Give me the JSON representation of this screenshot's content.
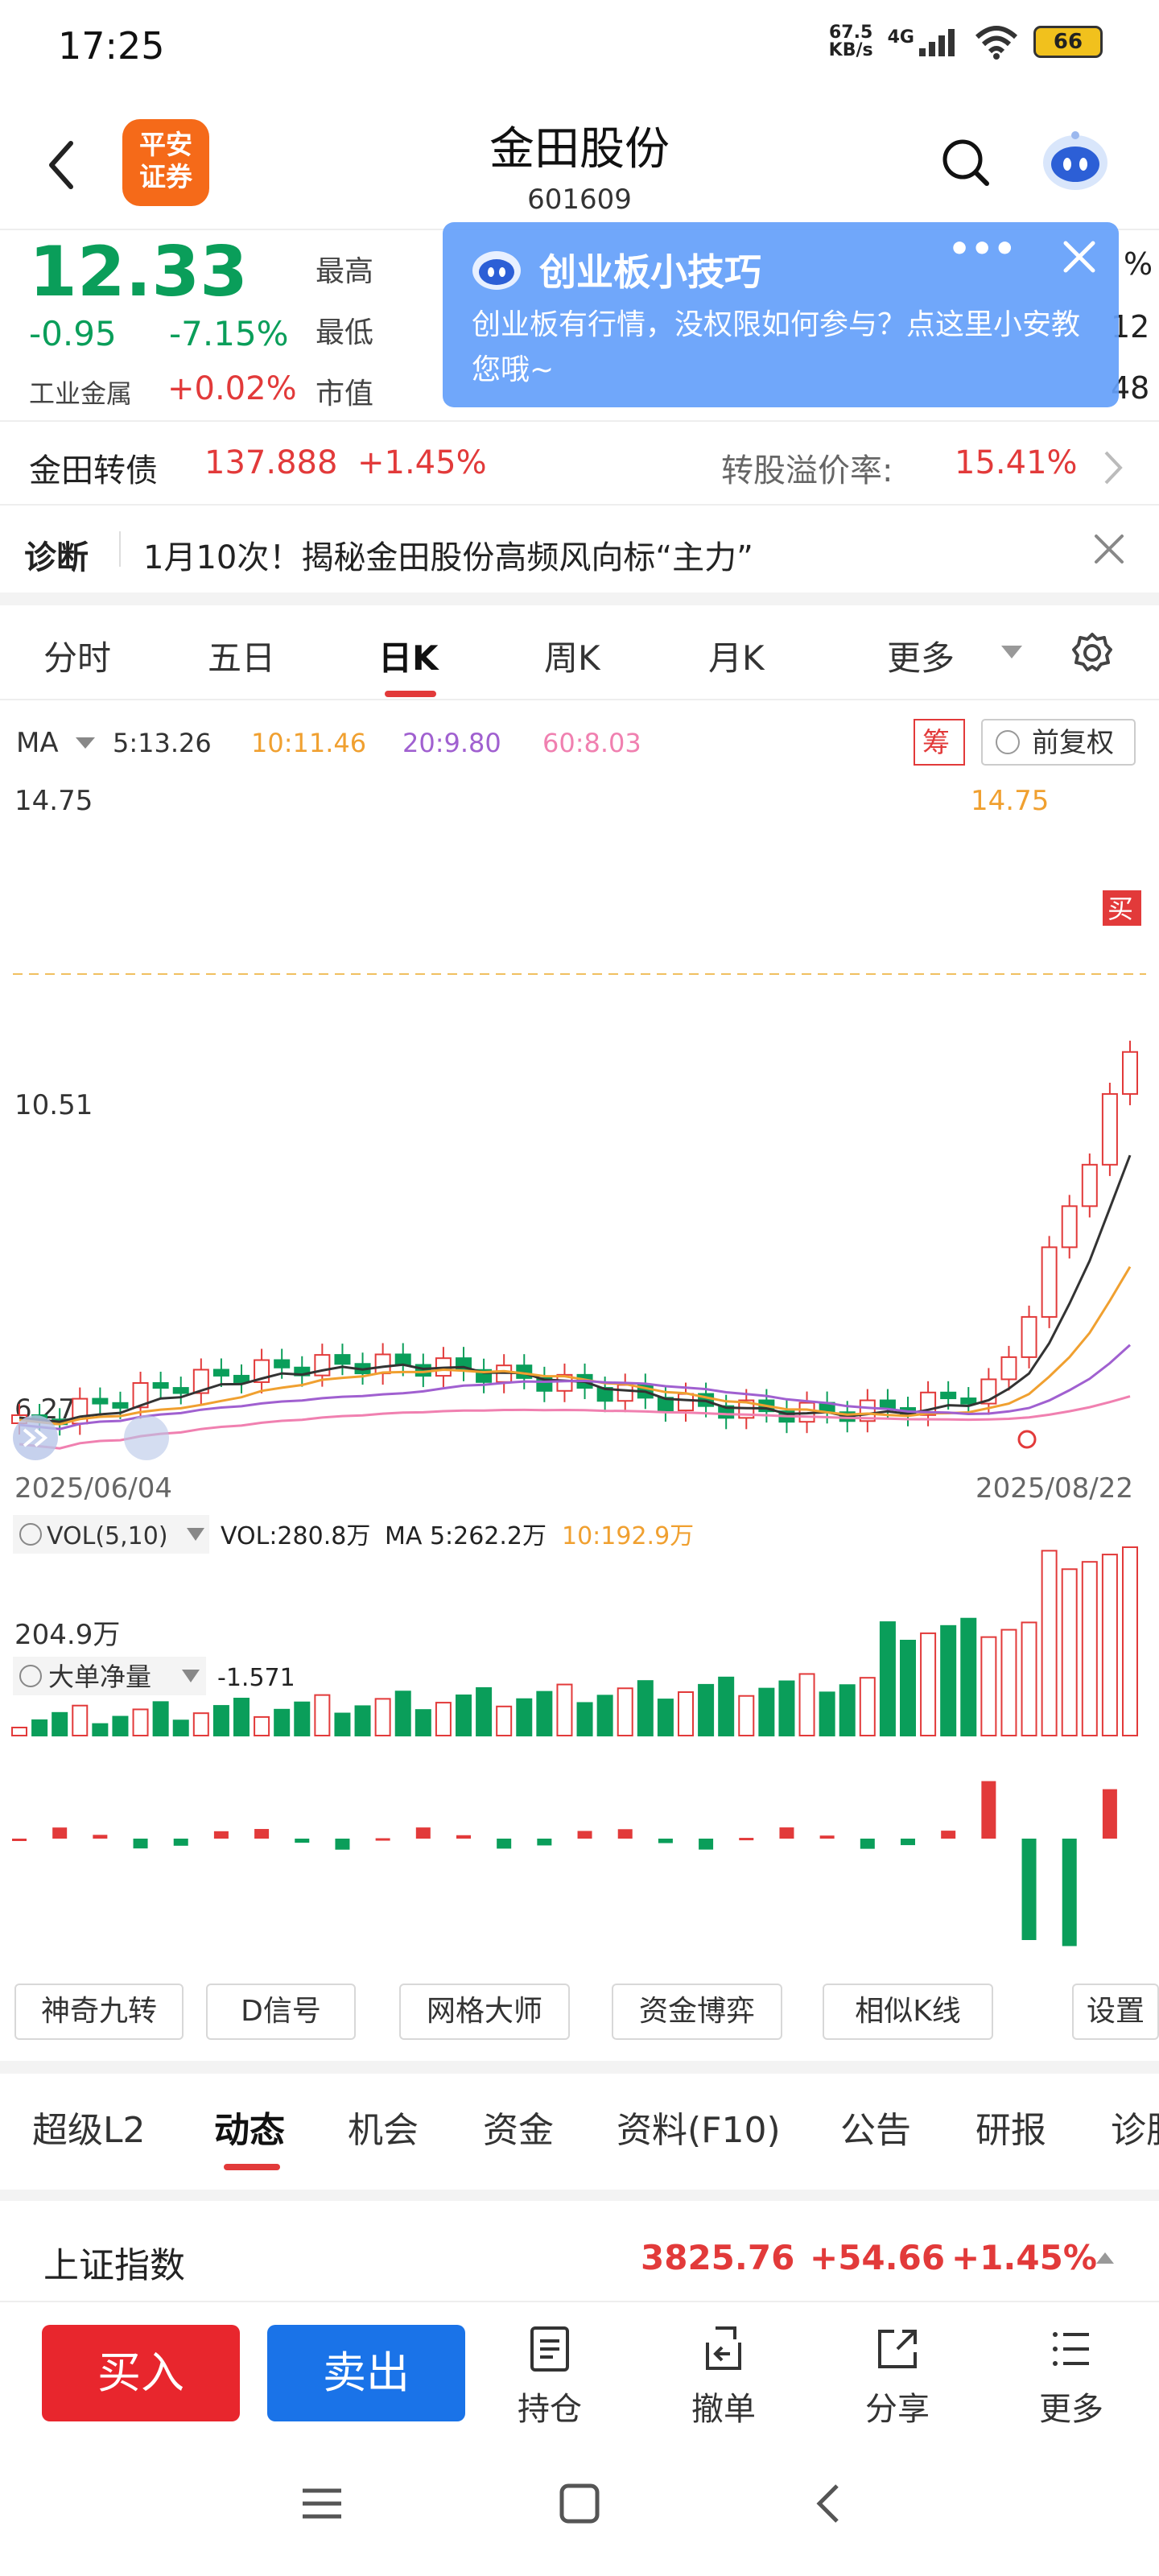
{
  "status_bar": {
    "time": "17:25",
    "net_speed": "67.5",
    "net_unit": "KB/s",
    "network": "4G",
    "battery": "66"
  },
  "header": {
    "logo_line1": "平安",
    "logo_line2": "证券",
    "stock_name": "金田股份",
    "stock_code": "601609"
  },
  "quote": {
    "price": "12.33",
    "change": "-0.95",
    "change_pct": "-7.15%",
    "industry": "工业金属",
    "industry_change": "+0.02%",
    "labels": {
      "high": "最高",
      "low": "最低",
      "mcap": "市值"
    },
    "right_col_tail": {
      "r1": "%",
      "r2": "12",
      "r3": "48"
    }
  },
  "tip": {
    "title": "创业板小技巧",
    "body": "创业板有行情，没权限如何参与？点这里小安教您哦~",
    "more": "•••"
  },
  "bond": {
    "name": "金田转债",
    "price": "137.888",
    "change": "+1.45%",
    "premium_label": "转股溢价率:",
    "premium_value": "15.41%"
  },
  "diagnosis": {
    "label": "诊断",
    "text": "1月10次！揭秘金田股份高频风向标“主力”"
  },
  "kline_tabs": [
    "分时",
    "五日",
    "日K",
    "周K",
    "月K",
    "更多"
  ],
  "chart": {
    "ma_label": "MA",
    "ma5": "5:13.26",
    "ma10": "10:11.46",
    "ma20": "20:9.80",
    "ma60": "60:8.03",
    "chip_label": "筹",
    "adjust_label": "前复权",
    "price_high": "14.75",
    "price_mid": "10.51",
    "price_low": "6.27",
    "peak_label": "14.75",
    "buy_mark": "买",
    "date_start": "2025/06/04",
    "date_end": "2025/08/22",
    "vol_label": "VOL(5,10)",
    "vol_value": "VOL:280.8万",
    "vol_ma5": "MA 5:262.2万",
    "vol_ma10": "10:192.9万",
    "vol_axis": "204.9万",
    "flow_label": "大单净量",
    "flow_value": "-1.571",
    "colors": {
      "up": "#e23a3a",
      "down": "#0a9e5a",
      "ma5": "#333333",
      "ma10": "#f0a030",
      "ma20": "#a060d0",
      "ma60": "#f080b0"
    }
  },
  "tools": [
    "神奇九转",
    "D信号",
    "网格大师",
    "资金博弈",
    "相似K线",
    "设置"
  ],
  "bottom_tabs": [
    "超级L2",
    "动态",
    "机会",
    "资金",
    "资料(F10)",
    "公告",
    "研报",
    "诊股"
  ],
  "index": {
    "name": "上证指数",
    "value": "3825.76",
    "change": "+54.66",
    "change_pct": "+1.45%"
  },
  "actions": {
    "buy": "买入",
    "sell": "卖出",
    "position": "持仓",
    "cancel": "撤单",
    "share": "分享",
    "more": "更多"
  }
}
